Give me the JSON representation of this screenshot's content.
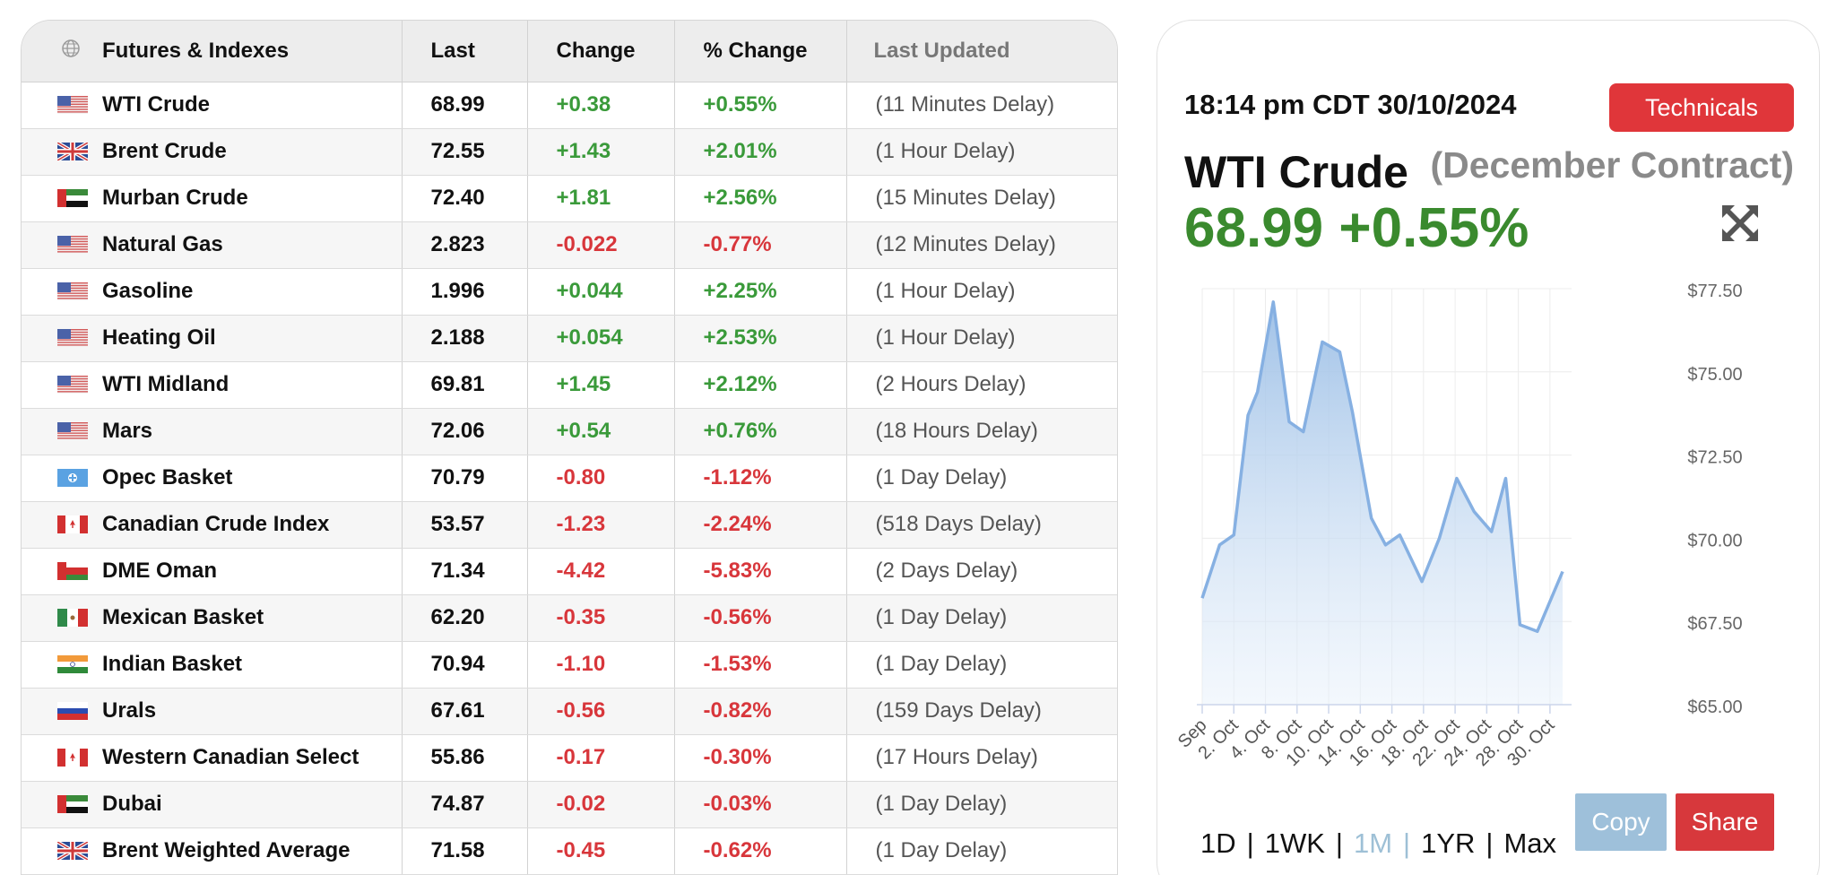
{
  "table": {
    "headers": {
      "name": "Futures & Indexes",
      "last": "Last",
      "change": "Change",
      "pct": "% Change",
      "updated": "Last Updated"
    },
    "rows": [
      {
        "flag": "us",
        "name": "WTI Crude",
        "last": "68.99",
        "change": "+0.38",
        "pct": "+0.55%",
        "dir": "pos",
        "updated": "(11 Minutes Delay)"
      },
      {
        "flag": "uk",
        "name": "Brent Crude",
        "last": "72.55",
        "change": "+1.43",
        "pct": "+2.01%",
        "dir": "pos",
        "updated": "(1 Hour Delay)"
      },
      {
        "flag": "uae",
        "name": "Murban Crude",
        "last": "72.40",
        "change": "+1.81",
        "pct": "+2.56%",
        "dir": "pos",
        "updated": "(15 Minutes Delay)"
      },
      {
        "flag": "us",
        "name": "Natural Gas",
        "last": "2.823",
        "change": "-0.022",
        "pct": "-0.77%",
        "dir": "neg",
        "updated": "(12 Minutes Delay)"
      },
      {
        "flag": "us",
        "name": "Gasoline",
        "last": "1.996",
        "change": "+0.044",
        "pct": "+2.25%",
        "dir": "pos",
        "updated": "(1 Hour Delay)"
      },
      {
        "flag": "us",
        "name": "Heating Oil",
        "last": "2.188",
        "change": "+0.054",
        "pct": "+2.53%",
        "dir": "pos",
        "updated": "(1 Hour Delay)"
      },
      {
        "flag": "us",
        "name": "WTI Midland",
        "last": "69.81",
        "change": "+1.45",
        "pct": "+2.12%",
        "dir": "pos",
        "updated": "(2 Hours Delay)"
      },
      {
        "flag": "us",
        "name": "Mars",
        "last": "72.06",
        "change": "+0.54",
        "pct": "+0.76%",
        "dir": "pos",
        "updated": "(18 Hours Delay)"
      },
      {
        "flag": "opec",
        "name": "Opec Basket",
        "last": "70.79",
        "change": "-0.80",
        "pct": "-1.12%",
        "dir": "neg",
        "updated": "(1 Day Delay)"
      },
      {
        "flag": "ca",
        "name": "Canadian Crude Index",
        "last": "53.57",
        "change": "-1.23",
        "pct": "-2.24%",
        "dir": "neg",
        "updated": "(518 Days Delay)"
      },
      {
        "flag": "om",
        "name": "DME Oman",
        "last": "71.34",
        "change": "-4.42",
        "pct": "-5.83%",
        "dir": "neg",
        "updated": "(2 Days Delay)"
      },
      {
        "flag": "mx",
        "name": "Mexican Basket",
        "last": "62.20",
        "change": "-0.35",
        "pct": "-0.56%",
        "dir": "neg",
        "updated": "(1 Day Delay)"
      },
      {
        "flag": "in",
        "name": "Indian Basket",
        "last": "70.94",
        "change": "-1.10",
        "pct": "-1.53%",
        "dir": "neg",
        "updated": "(1 Day Delay)"
      },
      {
        "flag": "ru",
        "name": "Urals",
        "last": "67.61",
        "change": "-0.56",
        "pct": "-0.82%",
        "dir": "neg",
        "updated": "(159 Days Delay)"
      },
      {
        "flag": "ca",
        "name": "Western Canadian Select",
        "last": "55.86",
        "change": "-0.17",
        "pct": "-0.30%",
        "dir": "neg",
        "updated": "(17 Hours Delay)"
      },
      {
        "flag": "uae",
        "name": "Dubai",
        "last": "74.87",
        "change": "-0.02",
        "pct": "-0.03%",
        "dir": "neg",
        "updated": "(1 Day Delay)"
      },
      {
        "flag": "uk",
        "name": "Brent Weighted Average",
        "last": "71.58",
        "change": "-0.45",
        "pct": "-0.62%",
        "dir": "neg",
        "updated": "(1 Day Delay)"
      }
    ]
  },
  "panel": {
    "timestamp": "18:14 pm CDT 30/10/2024",
    "technicals_label": "Technicals",
    "name": "WTI Crude",
    "contract": "(December Contract)",
    "price": "68.99",
    "pct": "+0.55%",
    "ranges": [
      "1D",
      "1WK",
      "1M",
      "1YR",
      "Max"
    ],
    "active_range": "1M",
    "copy_label": "Copy",
    "share_label": "Share"
  },
  "chart_data": {
    "type": "area",
    "x_ticks": [
      "Sep",
      "2. Oct",
      "4. Oct",
      "8. Oct",
      "10. Oct",
      "14. Oct",
      "16. Oct",
      "18. Oct",
      "22. Oct",
      "24. Oct",
      "28. Oct",
      "30. Oct"
    ],
    "y_ticks": [
      "$77.50",
      "$75.00",
      "$72.50",
      "$70.00",
      "$67.50",
      "$65.00"
    ],
    "ylim": [
      65,
      77.5
    ],
    "points": [
      {
        "x": 0,
        "y": 68.2
      },
      {
        "x": 0.55,
        "y": 69.8
      },
      {
        "x": 1.0,
        "y": 70.1
      },
      {
        "x": 1.45,
        "y": 73.7
      },
      {
        "x": 1.75,
        "y": 74.4
      },
      {
        "x": 2.25,
        "y": 77.1
      },
      {
        "x": 2.75,
        "y": 73.5
      },
      {
        "x": 3.2,
        "y": 73.2
      },
      {
        "x": 3.8,
        "y": 75.9
      },
      {
        "x": 4.35,
        "y": 75.6
      },
      {
        "x": 4.75,
        "y": 73.8
      },
      {
        "x": 5.35,
        "y": 70.6
      },
      {
        "x": 5.8,
        "y": 69.8
      },
      {
        "x": 6.25,
        "y": 70.1
      },
      {
        "x": 6.95,
        "y": 68.7
      },
      {
        "x": 7.5,
        "y": 70.0
      },
      {
        "x": 8.05,
        "y": 71.8
      },
      {
        "x": 8.6,
        "y": 70.8
      },
      {
        "x": 9.15,
        "y": 70.2
      },
      {
        "x": 9.6,
        "y": 71.8
      },
      {
        "x": 10.05,
        "y": 67.4
      },
      {
        "x": 10.6,
        "y": 67.2
      },
      {
        "x": 11.4,
        "y": 69.0
      }
    ]
  },
  "colors": {
    "positive": "#3a9a3a",
    "negative": "#d8363b",
    "price": "#3a8a2e",
    "line": "#86b0e2",
    "technicals": "#e0363a",
    "copy": "#9ec0da",
    "share": "#d7383c"
  }
}
